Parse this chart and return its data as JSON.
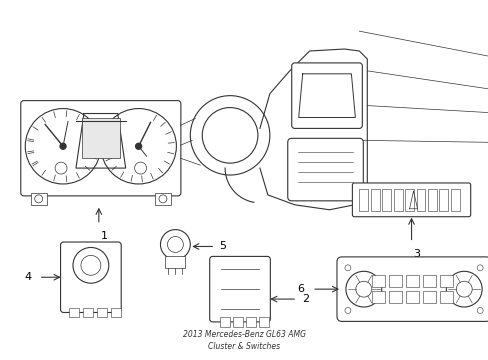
{
  "background_color": "#ffffff",
  "line_color": "#333333",
  "label_color": "#000000",
  "fig_width": 4.89,
  "fig_height": 3.6,
  "dpi": 100,
  "label_fontsize": 7
}
